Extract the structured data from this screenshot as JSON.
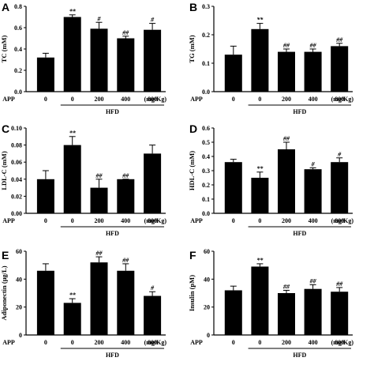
{
  "chart_data": [
    {
      "panel": "A",
      "type": "bar",
      "ylabel": "TC (mM)",
      "ylim": [
        0,
        0.8
      ],
      "yticks": [
        "0.0",
        "0.2",
        "0.4",
        "0.6",
        "0.8"
      ],
      "categories": [
        "0",
        "0",
        "200",
        "400",
        "800"
      ],
      "unit_label": "(mg/Kg)",
      "x_prefix": "APP",
      "group_label": "HFD",
      "values": [
        0.32,
        0.7,
        0.59,
        0.5,
        0.58
      ],
      "errors": [
        0.04,
        0.02,
        0.06,
        0.02,
        0.06
      ],
      "significance": [
        "",
        "**",
        "#",
        "##",
        "#"
      ]
    },
    {
      "panel": "B",
      "type": "bar",
      "ylabel": "TG (mM)",
      "ylim": [
        0,
        0.3
      ],
      "yticks": [
        "0.0",
        "0.1",
        "0.2",
        "0.3"
      ],
      "categories": [
        "0",
        "0",
        "200",
        "400",
        "800"
      ],
      "unit_label": "(mg/Kg)",
      "x_prefix": "APP",
      "group_label": "HFD",
      "values": [
        0.13,
        0.22,
        0.14,
        0.14,
        0.16
      ],
      "errors": [
        0.03,
        0.02,
        0.01,
        0.01,
        0.01
      ],
      "significance": [
        "",
        "**",
        "##",
        "##",
        "##"
      ]
    },
    {
      "panel": "C",
      "type": "bar",
      "ylabel": "LDL-C (mM)",
      "ylim": [
        0,
        0.1
      ],
      "yticks": [
        "0.00",
        "0.02",
        "0.04",
        "0.06",
        "0.08",
        "0.10"
      ],
      "categories": [
        "0",
        "0",
        "200",
        "400",
        "800"
      ],
      "unit_label": "(mg/Kg)",
      "x_prefix": "APP",
      "group_label": "HFD",
      "values": [
        0.04,
        0.08,
        0.03,
        0.04,
        0.07
      ],
      "errors": [
        0.01,
        0.01,
        0.01,
        0.0,
        0.01
      ],
      "significance": [
        "",
        "**",
        "##",
        "##",
        ""
      ]
    },
    {
      "panel": "D",
      "type": "bar",
      "ylabel": "HDL-C (mM)",
      "ylim": [
        0,
        0.6
      ],
      "yticks": [
        "0.0",
        "0.1",
        "0.2",
        "0.3",
        "0.4",
        "0.5",
        "0.6"
      ],
      "categories": [
        "0",
        "0",
        "200",
        "400",
        "800"
      ],
      "unit_label": "(mg/Kg)",
      "x_prefix": "APP",
      "group_label": "HFD",
      "values": [
        0.36,
        0.25,
        0.45,
        0.31,
        0.36
      ],
      "errors": [
        0.02,
        0.04,
        0.05,
        0.01,
        0.03
      ],
      "significance": [
        "",
        "**",
        "##",
        "#",
        "#"
      ]
    },
    {
      "panel": "E",
      "type": "bar",
      "ylabel": "Adiponectin (μg/L)",
      "ylim": [
        0,
        60
      ],
      "yticks": [
        "0",
        "20",
        "40",
        "60"
      ],
      "categories": [
        "0",
        "0",
        "200",
        "400",
        "800"
      ],
      "unit_label": "(mg/Kg)",
      "x_prefix": "APP",
      "group_label": "HFD",
      "values": [
        46,
        23,
        52,
        46,
        28
      ],
      "errors": [
        5,
        3,
        4,
        5,
        3
      ],
      "significance": [
        "",
        "**",
        "##",
        "##",
        "#"
      ]
    },
    {
      "panel": "F",
      "type": "bar",
      "ylabel": "Insulin (pM)",
      "ylim": [
        0,
        60
      ],
      "yticks": [
        "0",
        "20",
        "40",
        "60"
      ],
      "categories": [
        "0",
        "0",
        "200",
        "400",
        "800"
      ],
      "unit_label": "(mg/Kg)",
      "x_prefix": "APP",
      "group_label": "HFD",
      "values": [
        32,
        49,
        30,
        33,
        31
      ],
      "errors": [
        3,
        2,
        2,
        3,
        3
      ],
      "significance": [
        "",
        "**",
        "##",
        "##",
        "##"
      ]
    }
  ]
}
